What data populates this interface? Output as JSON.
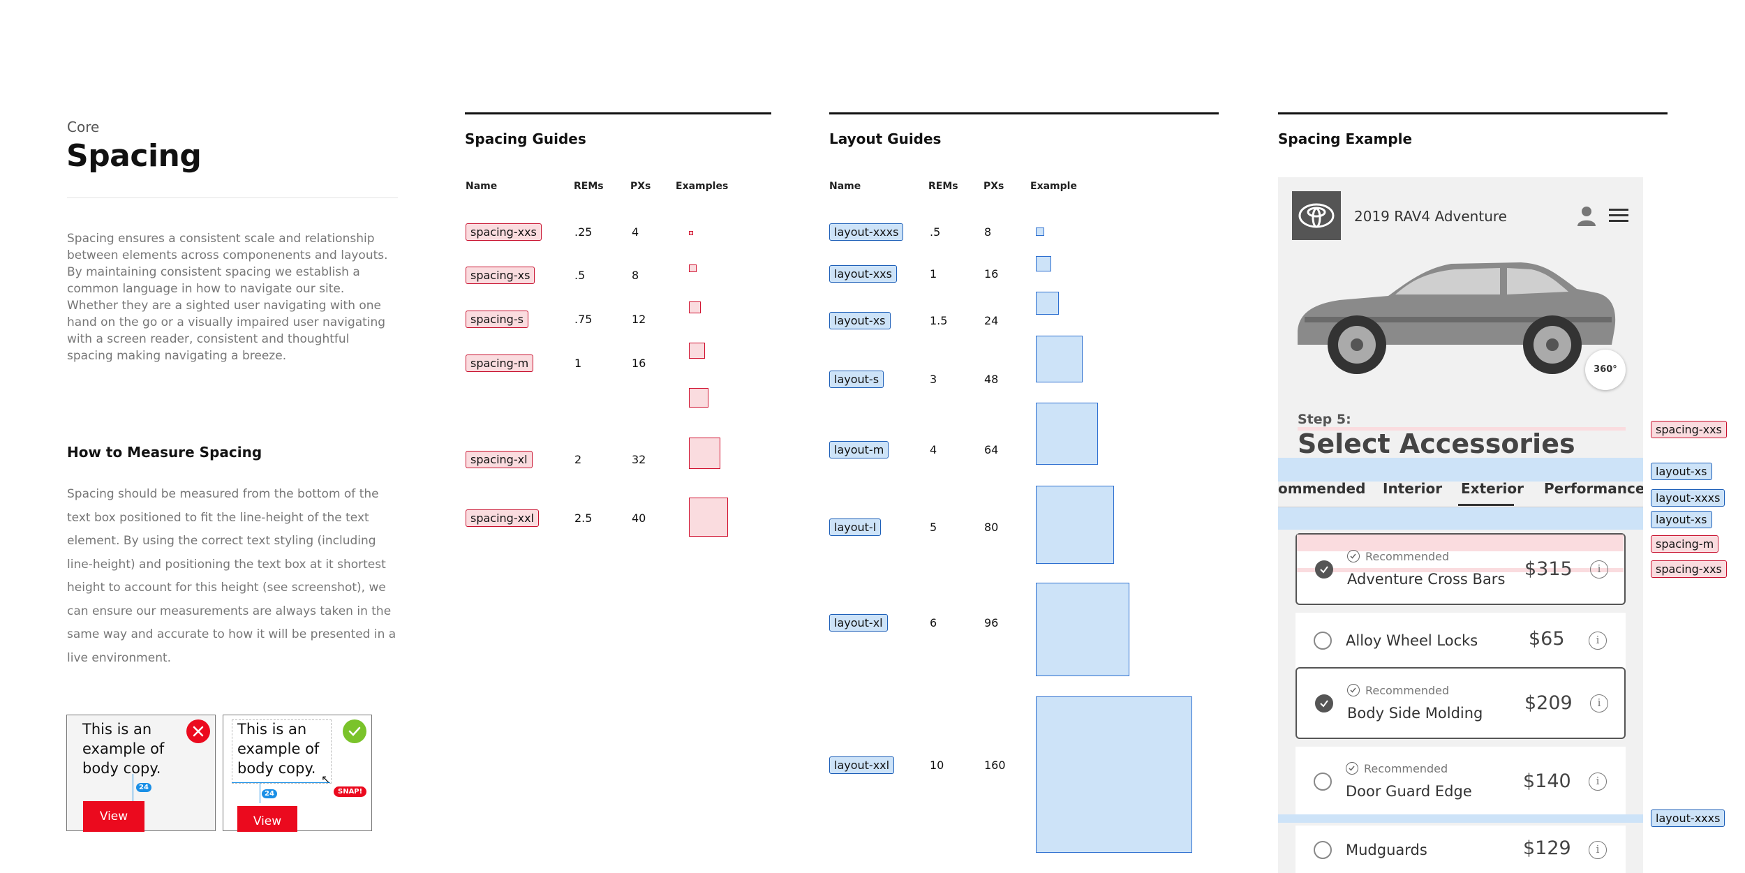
{
  "intro": {
    "eyebrow": "Core",
    "title": "Spacing",
    "description": "Spacing ensures a consistent scale and relationship between elements across componenents and layouts. By maintaining consistent spacing we establish a common language in how to navigate our site. Whether they are a sighted user navigating with one hand on the go or a visually impaired user navigating with a screen reader, consistent and thoughtful spacing making navigating a breeze.",
    "measure_title": "How to Measure Spacing",
    "measure_text": "Spacing should be measured from the bottom of the text box positioned to fit the line-height of the text element. By using the correct text styling (including line-height) and positioning the text box at it shortest height to account for this height (see screenshot), we can ensure our measurements are always taken in the same way and accurate to how it will be presented in a live environment."
  },
  "demo": {
    "body_text": "This is an example of body copy.",
    "button_label": "View",
    "measure_badge": "24",
    "snap_label": "SNAP!",
    "wrong_icon": "x-icon",
    "right_icon": "check-icon"
  },
  "spacing_guides": {
    "title": "Spacing Guides",
    "headers": {
      "name": "Name",
      "rems": "REMs",
      "pxs": "PXs",
      "examples": "Examples"
    },
    "rows": [
      {
        "name": "spacing-xxs",
        "rems": ".25",
        "pxs": "4"
      },
      {
        "name": "spacing-xs",
        "rems": ".5",
        "pxs": "8"
      },
      {
        "name": "spacing-s",
        "rems": ".75",
        "pxs": "12"
      },
      {
        "name": "spacing-m",
        "rems": "1",
        "pxs": "16"
      },
      {
        "name": "",
        "rems": "",
        "pxs": ""
      },
      {
        "name": "spacing-xl",
        "rems": "2",
        "pxs": "32"
      },
      {
        "name": "spacing-xxl",
        "rems": "2.5",
        "pxs": "40"
      }
    ]
  },
  "layout_guides": {
    "title": "Layout Guides",
    "headers": {
      "name": "Name",
      "rems": "REMs",
      "pxs": "PXs",
      "example": "Example"
    },
    "rows": [
      {
        "name": "layout-xxxs",
        "rems": ".5",
        "pxs": "8"
      },
      {
        "name": "layout-xxs",
        "rems": "1",
        "pxs": "16"
      },
      {
        "name": "layout-xs",
        "rems": "1.5",
        "pxs": "24"
      },
      {
        "name": "layout-s",
        "rems": "3",
        "pxs": "48"
      },
      {
        "name": "layout-m",
        "rems": "4",
        "pxs": "64"
      },
      {
        "name": "layout-l",
        "rems": "5",
        "pxs": "80"
      },
      {
        "name": "layout-xl",
        "rems": "6",
        "pxs": "96"
      },
      {
        "name": "layout-xxl",
        "rems": "10",
        "pxs": "160"
      }
    ]
  },
  "spacing_example": {
    "title": "Spacing Example",
    "vehicle": "2019 RAV4 Adventure",
    "badge_360": "360°",
    "step_label": "Step 5:",
    "step_title": "Select Accessories",
    "tabs": [
      "ommended",
      "Interior",
      "Exterior",
      "Performance"
    ],
    "recommended_label": "Recommended",
    "items": [
      {
        "name": "Adventure Cross Bars",
        "price": "$315"
      },
      {
        "name": "Alloy Wheel Locks",
        "price": "$65"
      },
      {
        "name": "Body Side Molding",
        "price": "$209"
      },
      {
        "name": "Door Guard Edge",
        "price": "$140"
      },
      {
        "name": "Mudguards",
        "price": "$129"
      }
    ],
    "info_glyph": "i",
    "annotations": [
      "spacing-xxs",
      "layout-xs",
      "layout-xxxs",
      "layout-xs",
      "spacing-m",
      "spacing-xxs",
      "layout-xxxs"
    ]
  },
  "colors": {
    "accent_red": "#eb0a1e",
    "spacing_red": "#fadcdf",
    "layout_blue": "#cde3f8"
  }
}
